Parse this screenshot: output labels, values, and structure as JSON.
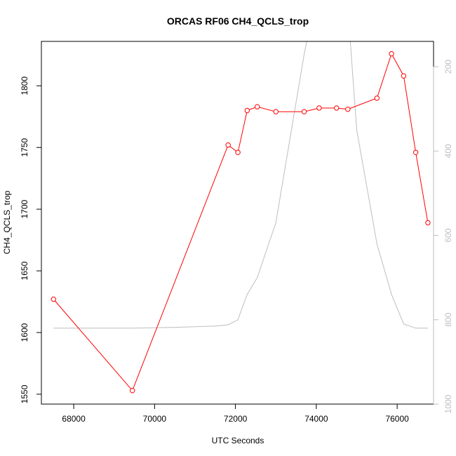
{
  "chart_data": {
    "type": "line",
    "title": "ORCAS RF06 CH4_QCLS_trop",
    "xlabel": "UTC Seconds",
    "ylabel": "CH4_QCLS_trop",
    "xlim": [
      67200,
      76900
    ],
    "ylim": [
      1542,
      1836
    ],
    "x_ticks": [
      68000,
      70000,
      72000,
      74000,
      76000
    ],
    "y_ticks": [
      1550,
      1600,
      1650,
      1700,
      1750,
      1800
    ],
    "y2_ticks": [
      200,
      400,
      600,
      800,
      1000
    ],
    "y2_lim": [
      1000,
      140
    ],
    "grid": false,
    "series": [
      {
        "color": "#ff0000",
        "style": "line+points",
        "axis": "left",
        "x": [
          67500,
          69450,
          71820,
          72060,
          72290,
          72540,
          73000,
          73700,
          74070,
          74500,
          74780,
          75500,
          75860,
          76160,
          76460,
          76760
        ],
        "y": [
          1627,
          1553,
          1752,
          1746,
          1780,
          1783,
          1779,
          1779,
          1782,
          1782,
          1781,
          1790,
          1826,
          1808,
          1746,
          1689
        ]
      },
      {
        "color": "#bebebe",
        "style": "line",
        "axis": "right",
        "x": [
          67500,
          69450,
          70500,
          71500,
          71820,
          72060,
          72290,
          72540,
          73000,
          73700,
          74070,
          74500,
          74780,
          75000,
          75500,
          75860,
          76160,
          76460,
          76760
        ],
        "y": [
          820,
          820,
          818,
          815,
          812,
          800,
          740,
          700,
          570,
          170,
          0,
          0,
          60,
          350,
          620,
          740,
          810,
          820,
          820
        ]
      }
    ]
  }
}
